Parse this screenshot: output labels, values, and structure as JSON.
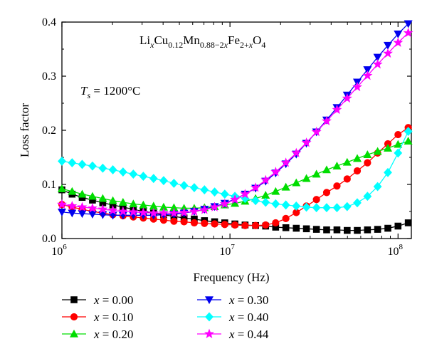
{
  "chart_data": {
    "type": "line",
    "title": "",
    "xlabel": "Frequency (Hz)",
    "ylabel": "Loss factor",
    "x_scale": "log",
    "xlim": [
      1000000,
      120000000
    ],
    "ylim": [
      0,
      0.4
    ],
    "x_ticks": [
      {
        "value": 1000000,
        "base": "10",
        "exp": "6"
      },
      {
        "value": 10000000,
        "base": "10",
        "exp": "7"
      },
      {
        "value": 100000000,
        "base": "10",
        "exp": "8"
      }
    ],
    "y_ticks": [
      {
        "value": 0.0,
        "label": "0.0"
      },
      {
        "value": 0.1,
        "label": "0.1"
      },
      {
        "value": 0.2,
        "label": "0.2"
      },
      {
        "value": 0.3,
        "label": "0.3"
      },
      {
        "value": 0.4,
        "label": "0.4"
      }
    ],
    "grid": false,
    "legend_position": "bottom",
    "annotations": {
      "formula": {
        "li": "Li",
        "x": "x",
        "cu": "Cu",
        "cu_sub": "0.12",
        "mn": "Mn",
        "mn_sub": "0.88−2",
        "fe": "Fe",
        "fe_sub": "2+",
        "o": "O",
        "o_sub": "4"
      },
      "temperature": {
        "t": "T",
        "s": "s",
        "value": " = 1200°C"
      }
    },
    "series": [
      {
        "name": "x = 0.00",
        "var": "x",
        "rest": " = 0.00",
        "color": "#000000",
        "marker": "square",
        "x": [
          1000000,
          1150000,
          1320000,
          1520000,
          1750000,
          2010000,
          2310000,
          2660000,
          3050000,
          3510000,
          4030000,
          4640000,
          5330000,
          6130000,
          7050000,
          8100000,
          9310000,
          10700000,
          12300000,
          14200000,
          16300000,
          18700000,
          21500000,
          24800000,
          28500000,
          32700000,
          37600000,
          43300000,
          49800000,
          57200000,
          65800000,
          75600000,
          87000000,
          100000000,
          115000000
        ],
        "y": [
          0.09,
          0.082,
          0.076,
          0.071,
          0.066,
          0.062,
          0.058,
          0.054,
          0.05,
          0.047,
          0.044,
          0.041,
          0.038,
          0.036,
          0.033,
          0.031,
          0.029,
          0.027,
          0.025,
          0.024,
          0.023,
          0.021,
          0.02,
          0.019,
          0.018,
          0.017,
          0.016,
          0.016,
          0.015,
          0.015,
          0.016,
          0.017,
          0.019,
          0.023,
          0.029
        ]
      },
      {
        "name": "x = 0.10",
        "var": "x",
        "rest": " = 0.10",
        "color": "#ff0000",
        "marker": "circle",
        "x": [
          1000000,
          1150000,
          1320000,
          1520000,
          1750000,
          2010000,
          2310000,
          2660000,
          3050000,
          3510000,
          4030000,
          4640000,
          5330000,
          6130000,
          7050000,
          8100000,
          9310000,
          10700000,
          12300000,
          14200000,
          16300000,
          18700000,
          21500000,
          24800000,
          28500000,
          32700000,
          37600000,
          43300000,
          49800000,
          57200000,
          65800000,
          75600000,
          87000000,
          100000000,
          115000000
        ],
        "y": [
          0.063,
          0.058,
          0.054,
          0.05,
          0.047,
          0.044,
          0.042,
          0.04,
          0.038,
          0.036,
          0.034,
          0.032,
          0.031,
          0.029,
          0.028,
          0.027,
          0.026,
          0.025,
          0.024,
          0.024,
          0.025,
          0.029,
          0.037,
          0.048,
          0.06,
          0.072,
          0.085,
          0.097,
          0.11,
          0.125,
          0.14,
          0.158,
          0.175,
          0.192,
          0.205
        ]
      },
      {
        "name": "x = 0.20",
        "var": "x",
        "rest": " = 0.20",
        "color": "#00dd00",
        "marker": "triangle-up",
        "x": [
          1000000,
          1150000,
          1320000,
          1520000,
          1750000,
          2010000,
          2310000,
          2660000,
          3050000,
          3510000,
          4030000,
          4640000,
          5330000,
          6130000,
          7050000,
          8100000,
          9310000,
          10700000,
          12300000,
          14200000,
          16300000,
          18700000,
          21500000,
          24800000,
          28500000,
          32700000,
          37600000,
          43300000,
          49800000,
          57200000,
          65800000,
          75600000,
          87000000,
          100000000,
          115000000
        ],
        "y": [
          0.092,
          0.087,
          0.082,
          0.078,
          0.074,
          0.07,
          0.067,
          0.064,
          0.062,
          0.06,
          0.058,
          0.057,
          0.056,
          0.056,
          0.057,
          0.059,
          0.062,
          0.065,
          0.069,
          0.074,
          0.08,
          0.087,
          0.095,
          0.103,
          0.111,
          0.119,
          0.127,
          0.134,
          0.141,
          0.148,
          0.155,
          0.161,
          0.167,
          0.174,
          0.18
        ]
      },
      {
        "name": "x = 0.30",
        "var": "x",
        "rest": " = 0.30",
        "color": "#0000ee",
        "marker": "triangle-down",
        "x": [
          1000000,
          1150000,
          1320000,
          1520000,
          1750000,
          2010000,
          2310000,
          2660000,
          3050000,
          3510000,
          4030000,
          4640000,
          5330000,
          6130000,
          7050000,
          8100000,
          9310000,
          10700000,
          12300000,
          14200000,
          16300000,
          18700000,
          21500000,
          24800000,
          28500000,
          32700000,
          37600000,
          43300000,
          49800000,
          57200000,
          65800000,
          75600000,
          87000000,
          100000000,
          115000000
        ],
        "y": [
          0.049,
          0.047,
          0.046,
          0.045,
          0.044,
          0.043,
          0.043,
          0.043,
          0.043,
          0.043,
          0.044,
          0.045,
          0.047,
          0.05,
          0.054,
          0.059,
          0.065,
          0.073,
          0.082,
          0.093,
          0.106,
          0.121,
          0.138,
          0.156,
          0.176,
          0.197,
          0.219,
          0.242,
          0.265,
          0.289,
          0.312,
          0.335,
          0.357,
          0.378,
          0.397
        ]
      },
      {
        "name": "x = 0.40",
        "var": "x",
        "rest": " = 0.40",
        "color": "#00ffff",
        "marker": "diamond",
        "x": [
          1000000,
          1150000,
          1320000,
          1520000,
          1750000,
          2010000,
          2310000,
          2660000,
          3050000,
          3510000,
          4030000,
          4640000,
          5330000,
          6130000,
          7050000,
          8100000,
          9310000,
          10700000,
          12300000,
          14200000,
          16300000,
          18700000,
          21500000,
          24800000,
          28500000,
          32700000,
          37600000,
          43300000,
          49800000,
          57200000,
          65800000,
          75600000,
          87000000,
          100000000,
          115000000
        ],
        "y": [
          0.143,
          0.14,
          0.137,
          0.134,
          0.13,
          0.127,
          0.123,
          0.119,
          0.115,
          0.111,
          0.107,
          0.102,
          0.098,
          0.094,
          0.09,
          0.086,
          0.082,
          0.078,
          0.074,
          0.07,
          0.067,
          0.064,
          0.062,
          0.06,
          0.058,
          0.057,
          0.057,
          0.057,
          0.059,
          0.066,
          0.078,
          0.096,
          0.122,
          0.158,
          0.198
        ]
      },
      {
        "name": "x = 0.44",
        "var": "x",
        "rest": " = 0.44",
        "color": "#ff00ff",
        "marker": "star",
        "x": [
          1000000,
          1150000,
          1320000,
          1520000,
          1750000,
          2010000,
          2310000,
          2660000,
          3050000,
          3510000,
          4030000,
          4640000,
          5330000,
          6130000,
          7050000,
          8100000,
          9310000,
          10700000,
          12300000,
          14200000,
          16300000,
          18700000,
          21500000,
          24800000,
          28500000,
          32700000,
          37600000,
          43300000,
          49800000,
          57200000,
          65800000,
          75600000,
          87000000,
          100000000,
          115000000
        ],
        "y": [
          0.063,
          0.06,
          0.058,
          0.056,
          0.054,
          0.052,
          0.05,
          0.049,
          0.048,
          0.047,
          0.047,
          0.047,
          0.048,
          0.05,
          0.053,
          0.058,
          0.064,
          0.072,
          0.082,
          0.094,
          0.108,
          0.123,
          0.14,
          0.158,
          0.177,
          0.197,
          0.217,
          0.238,
          0.259,
          0.28,
          0.301,
          0.322,
          0.342,
          0.362,
          0.38
        ]
      }
    ]
  }
}
